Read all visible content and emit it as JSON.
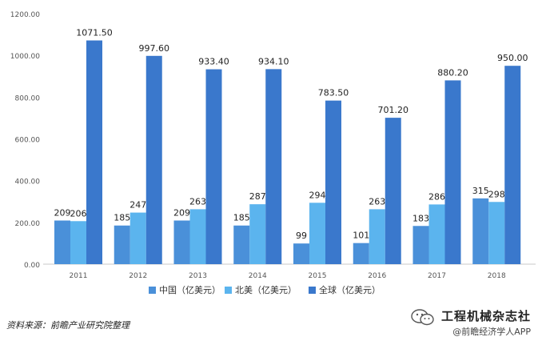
{
  "chart_data": {
    "type": "bar",
    "categories": [
      "2011",
      "2012",
      "2013",
      "2014",
      "2015",
      "2016",
      "2017",
      "2018"
    ],
    "series": [
      {
        "name": "中国（亿美元）",
        "color": "#4a90d9",
        "values": [
          209,
          185,
          209,
          185,
          99,
          101,
          183,
          315
        ],
        "labels": [
          "209",
          "185",
          "209",
          "185",
          "99",
          "101",
          "183",
          "315"
        ]
      },
      {
        "name": "北美（亿美元）",
        "color": "#5bb4ee",
        "values": [
          206,
          247,
          263,
          287,
          294,
          263,
          286,
          298
        ],
        "labels": [
          "206",
          "247",
          "263",
          "287",
          "294",
          "263",
          "286",
          "298"
        ]
      },
      {
        "name": "全球（亿美元）",
        "color": "#3a78cc",
        "values": [
          1071.5,
          997.6,
          933.4,
          934.1,
          783.5,
          701.2,
          880.2,
          950.0
        ],
        "labels": [
          "1071.50",
          "997.60",
          "933.40",
          "934.10",
          "783.50",
          "701.20",
          "880.20",
          "950.00"
        ]
      }
    ],
    "y_ticks": [
      "0.00",
      "200.00",
      "400.00",
      "600.00",
      "800.00",
      "1000.00",
      "1200.00"
    ],
    "ylim": [
      0,
      1200
    ],
    "legend_position": "bottom-center",
    "grid": false
  },
  "footer": {
    "source": "资料来源：前瞻产业研究院整理",
    "wechat_name": "工程机械杂志社",
    "wechat_sub": "@前瞻经济学人APP"
  },
  "icons": {
    "wechat": "wechat-icon"
  }
}
